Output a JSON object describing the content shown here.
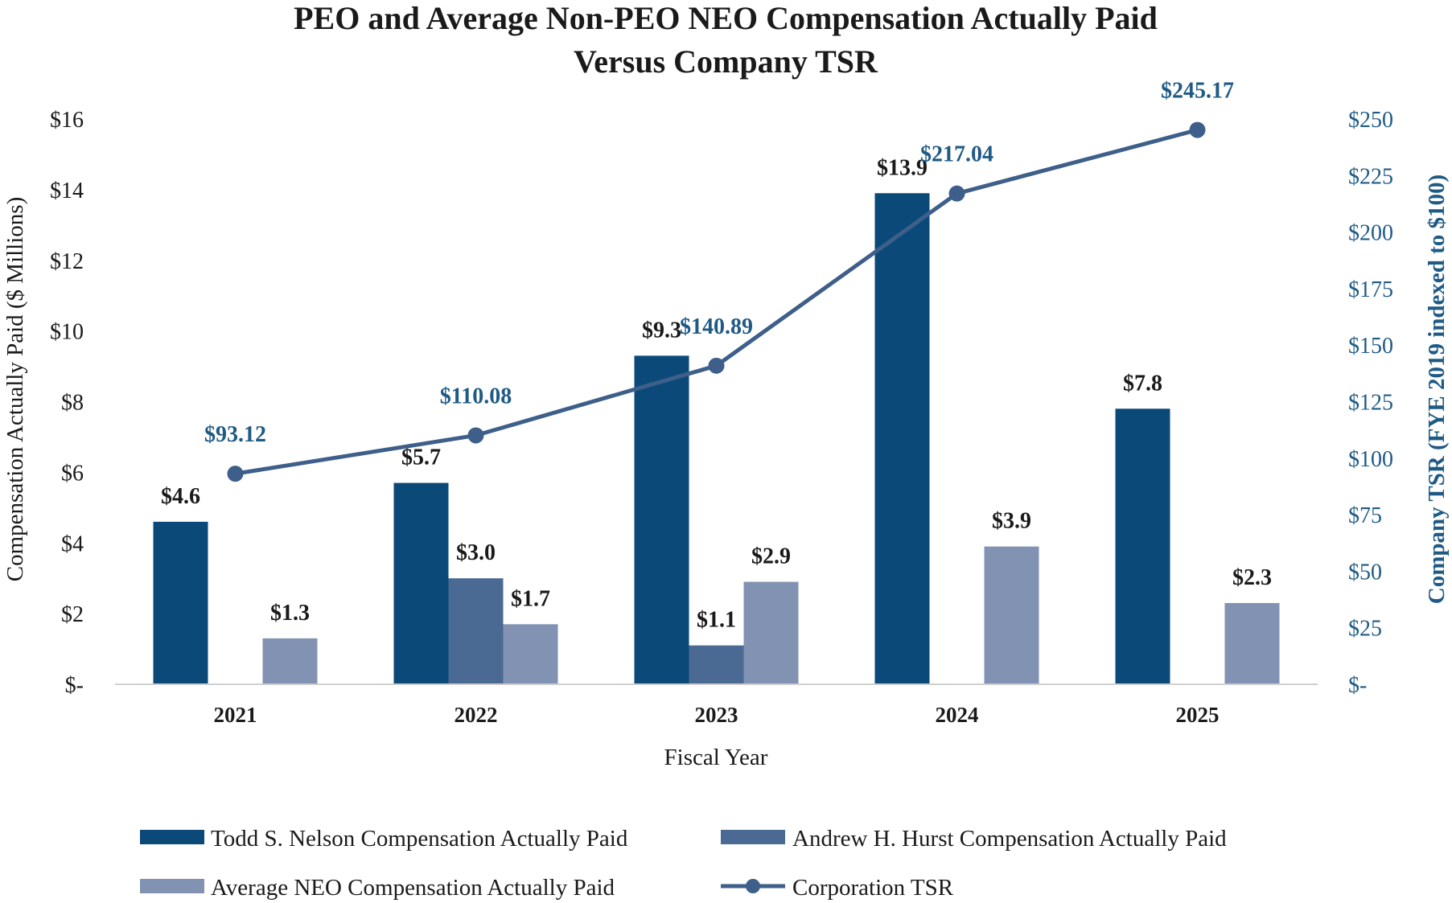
{
  "chart_data": {
    "type": "bar",
    "title_line1": "PEO and Average Non-PEO NEO Compensation Actually Paid",
    "title_line2": "Versus Company TSR",
    "xlabel": "Fiscal Year",
    "ylabel": "Compensation Actually Paid ($ Millions)",
    "y2label": "Company TSR (FYE 2019 indexed to $100)",
    "categories": [
      "2021",
      "2022",
      "2023",
      "2024",
      "2025"
    ],
    "ylim": [
      0,
      16
    ],
    "y_ticks": [
      0,
      2,
      4,
      6,
      8,
      10,
      12,
      14,
      16
    ],
    "y_tick_labels": [
      "$-",
      "$2",
      "$4",
      "$6",
      "$8",
      "$10",
      "$12",
      "$14",
      "$16"
    ],
    "y2lim": [
      0,
      250
    ],
    "y2_ticks": [
      0,
      25,
      50,
      75,
      100,
      125,
      150,
      175,
      200,
      225,
      250
    ],
    "y2_tick_labels": [
      "$-",
      "$25",
      "$50",
      "$75",
      "$100",
      "$125",
      "$150",
      "$175",
      "$200",
      "$225",
      "$250"
    ],
    "series": [
      {
        "name": "Todd S. Nelson Compensation Actually Paid",
        "color": "#0b4a78",
        "values": [
          4.6,
          5.7,
          9.3,
          13.9,
          7.8
        ],
        "labels": [
          "$4.6",
          "$5.7",
          "$9.3",
          "$13.9",
          "$7.8"
        ]
      },
      {
        "name": "Andrew H. Hurst Compensation Actually Paid",
        "color": "#4b6a93",
        "values": [
          null,
          3.0,
          1.1,
          null,
          null
        ],
        "labels": [
          null,
          "$3.0",
          "$1.1",
          null,
          null
        ]
      },
      {
        "name": "Average NEO Compensation Actually Paid",
        "color": "#8192b3",
        "values": [
          1.3,
          1.7,
          2.9,
          3.9,
          2.3
        ],
        "labels": [
          "$1.3",
          "$1.7",
          "$2.9",
          "$3.9",
          "$2.3"
        ]
      }
    ],
    "line_series": {
      "name": "Corporation TSR",
      "color": "#3e5f8a",
      "label_color": "#1f5a85",
      "axis": "right",
      "values": [
        93.12,
        110.08,
        140.89,
        217.04,
        245.17
      ],
      "labels": [
        "$93.12",
        "$110.08",
        "$140.89",
        "$217.04",
        "$245.17"
      ]
    },
    "legend_position": "bottom"
  }
}
